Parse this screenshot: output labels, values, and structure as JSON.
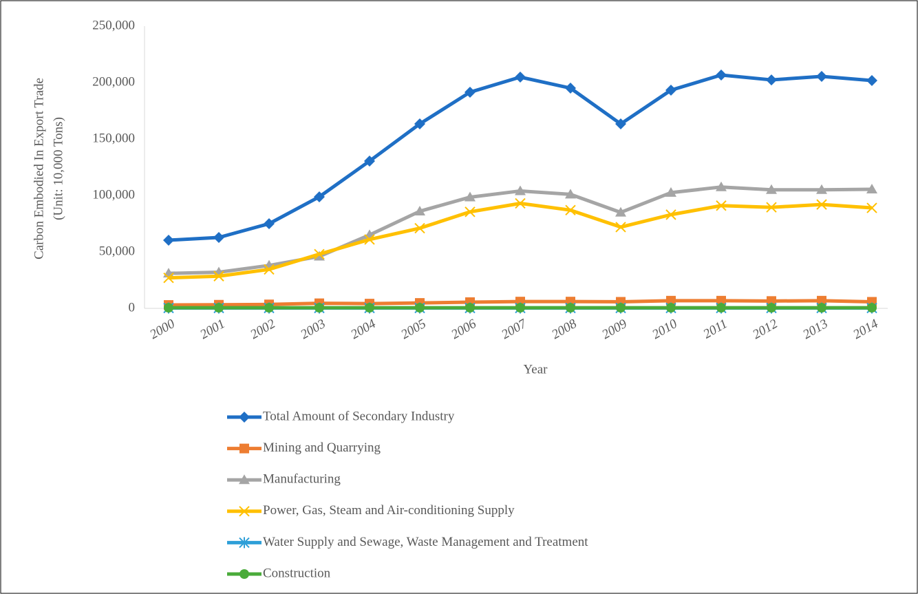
{
  "chart_data": {
    "type": "line",
    "y_label": [
      "Carbon Embodied In Export Trade",
      "(Unit: 10,000 Tons)"
    ],
    "x_label": "Year",
    "categories": [
      "2000",
      "2001",
      "2002",
      "2003",
      "2004",
      "2005",
      "2006",
      "2007",
      "2008",
      "2009",
      "2010",
      "2011",
      "2012",
      "2013",
      "2014"
    ],
    "ylim": [
      0,
      250000
    ],
    "yticks": [
      0,
      {
        "value": 50000,
        "label": "50,000"
      },
      {
        "value": 100000,
        "label": "100,000"
      },
      {
        "value": 150000,
        "label": "150,000"
      },
      {
        "value": 200000,
        "label": "200,000"
      },
      {
        "value": 250000,
        "label": "250,000"
      }
    ],
    "grid": false,
    "legend": "bottom",
    "series": [
      {
        "name": "Total Amount of Secondary Industry",
        "color": "#1f6fc5",
        "marker": "diamond",
        "values": [
          60400,
          62800,
          75000,
          98800,
          130500,
          163400,
          191500,
          204900,
          195100,
          163400,
          193300,
          206700,
          202400,
          205500,
          201800
        ]
      },
      {
        "name": "Mining and Quarrying",
        "color": "#ed7d31",
        "marker": "square",
        "values": [
          3000,
          3200,
          3500,
          4500,
          4200,
          4800,
          5500,
          6000,
          6000,
          5800,
          6800,
          6800,
          6500,
          6800,
          5800
        ]
      },
      {
        "name": "Manufacturing",
        "color": "#a5a5a5",
        "marker": "triangle",
        "values": [
          31000,
          32000,
          38000,
          46000,
          65000,
          86000,
          98500,
          104000,
          101000,
          85000,
          102500,
          107500,
          105000,
          105000,
          105500
        ]
      },
      {
        "name": "Power, Gas, Steam and Air-conditioning Supply",
        "color": "#ffc000",
        "marker": "x",
        "values": [
          27000,
          28500,
          34500,
          48000,
          61000,
          71000,
          85500,
          93000,
          87000,
          72000,
          83000,
          91000,
          89500,
          92000,
          89000
        ]
      },
      {
        "name": "Water Supply and Sewage, Waste Management and Treatment",
        "color": "#2e9fd8",
        "marker": "star",
        "values": [
          300,
          300,
          300,
          300,
          300,
          300,
          300,
          300,
          300,
          300,
          300,
          300,
          300,
          300,
          300
        ]
      },
      {
        "name": "Construction",
        "color": "#4aab3a",
        "marker": "circle",
        "values": [
          500,
          500,
          500,
          500,
          500,
          500,
          500,
          500,
          500,
          500,
          500,
          500,
          500,
          500,
          500
        ]
      }
    ]
  }
}
